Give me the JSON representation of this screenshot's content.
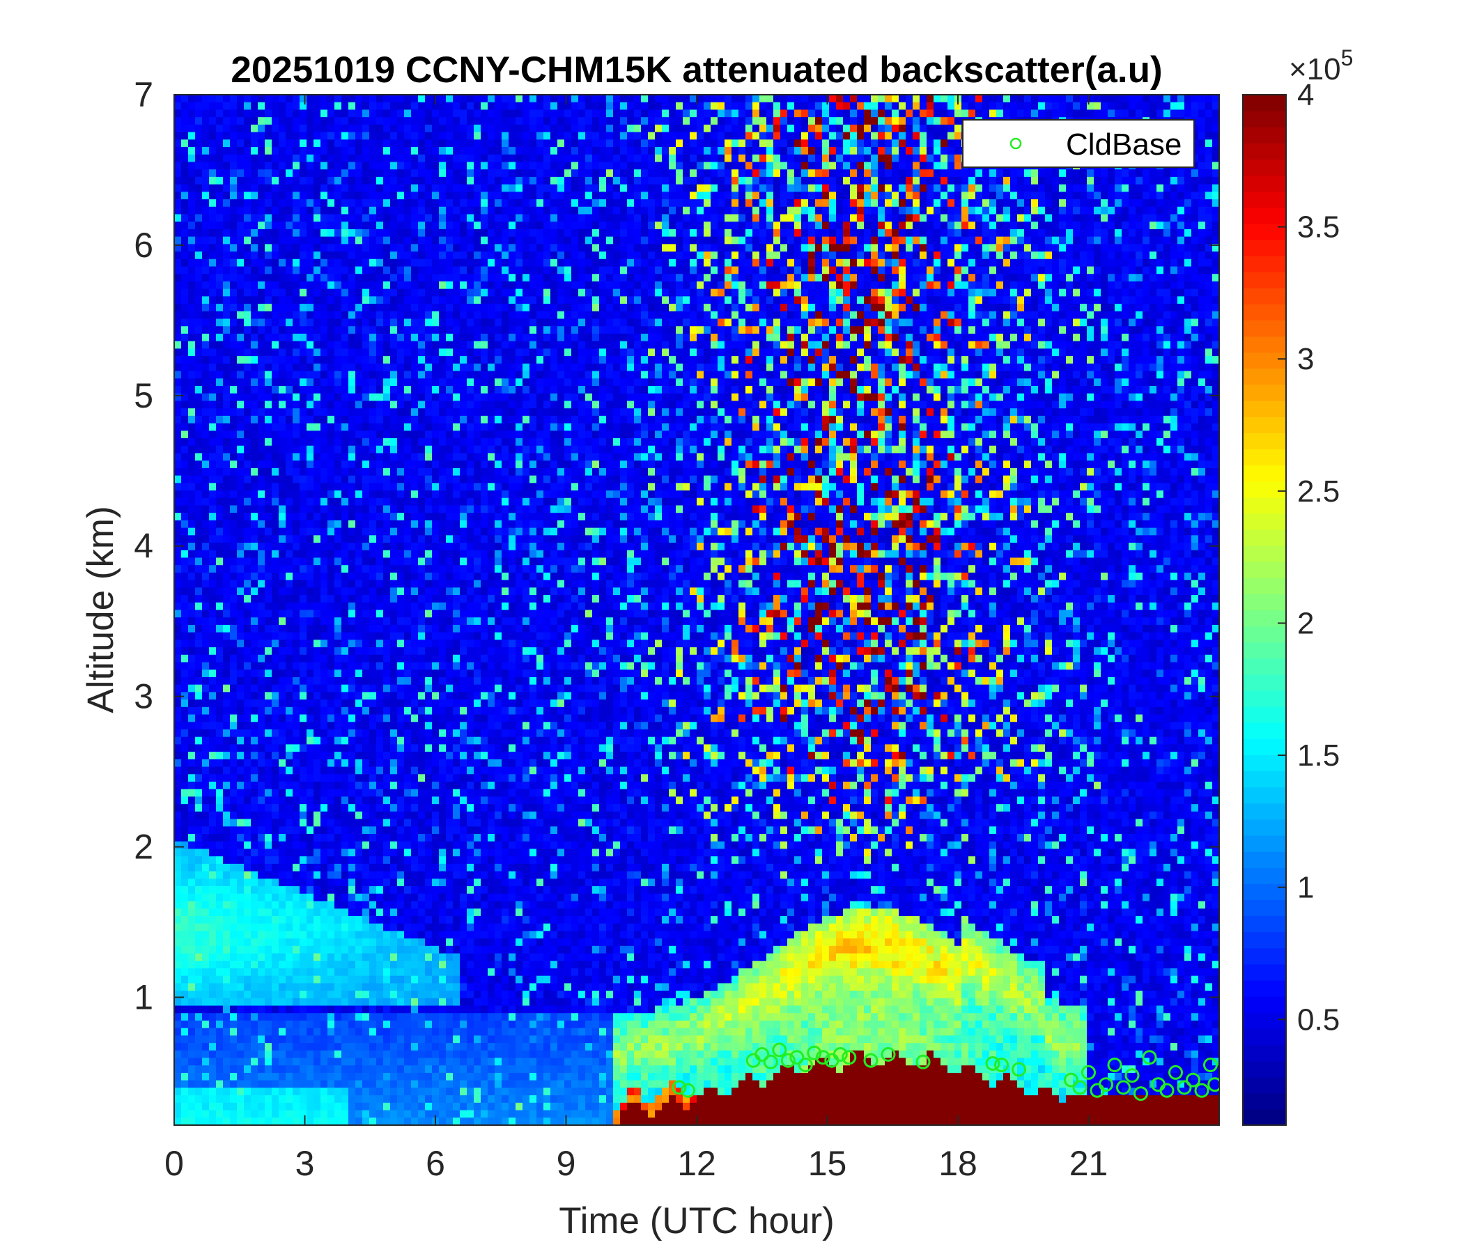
{
  "chart_data": {
    "type": "heatmap",
    "title": "20251019 CCNY-CHM15K attenuated backscatter(a.u)",
    "xlabel": "Time (UTC hour)",
    "ylabel": "Altitude (km)",
    "xlim": [
      0,
      24
    ],
    "ylim": [
      0.15,
      7
    ],
    "x_ticks": [
      0,
      3,
      6,
      9,
      12,
      15,
      18,
      21
    ],
    "x_tick_labels": [
      "0",
      "3",
      "6",
      "9",
      "12",
      "15",
      "18",
      "21"
    ],
    "y_ticks": [
      1,
      2,
      3,
      4,
      5,
      6,
      7
    ],
    "y_tick_labels": [
      "1",
      "2",
      "3",
      "4",
      "5",
      "6",
      "7"
    ],
    "colorbar": {
      "colormap": "jet",
      "clim": [
        10000,
        400000
      ],
      "ticks": [
        50000,
        100000,
        150000,
        200000,
        250000,
        300000,
        350000,
        400000
      ],
      "tick_labels": [
        "0.5",
        "1",
        "1.5",
        "2",
        "2.5",
        "3",
        "3.5",
        "4"
      ],
      "exponent_base": "×10",
      "exponent_power": "5"
    },
    "legend": {
      "position": "top-right",
      "entries": [
        "CldBase"
      ]
    },
    "colors": {
      "cloud_base_marker": "#22ee22",
      "background": "#00007a"
    },
    "series": [
      {
        "name": "CldBase",
        "marker": "open-circle",
        "x": [
          11.6,
          11.8,
          13.3,
          13.5,
          13.7,
          13.9,
          14.1,
          14.3,
          14.5,
          14.7,
          14.9,
          15.1,
          15.3,
          15.5,
          16.0,
          16.4,
          17.2,
          18.8,
          19.0,
          19.4,
          20.6,
          20.8,
          21.0,
          21.2,
          21.4,
          21.6,
          21.8,
          22.0,
          22.2,
          22.4,
          22.6,
          22.8,
          23.0,
          23.2,
          23.4,
          23.6,
          23.8,
          23.9
        ],
        "y": [
          0.4,
          0.38,
          0.58,
          0.62,
          0.57,
          0.65,
          0.58,
          0.6,
          0.55,
          0.63,
          0.6,
          0.58,
          0.62,
          0.6,
          0.58,
          0.62,
          0.57,
          0.56,
          0.55,
          0.52,
          0.45,
          0.4,
          0.5,
          0.38,
          0.42,
          0.55,
          0.4,
          0.48,
          0.36,
          0.6,
          0.42,
          0.38,
          0.5,
          0.4,
          0.45,
          0.38,
          0.55,
          0.42
        ]
      }
    ]
  }
}
